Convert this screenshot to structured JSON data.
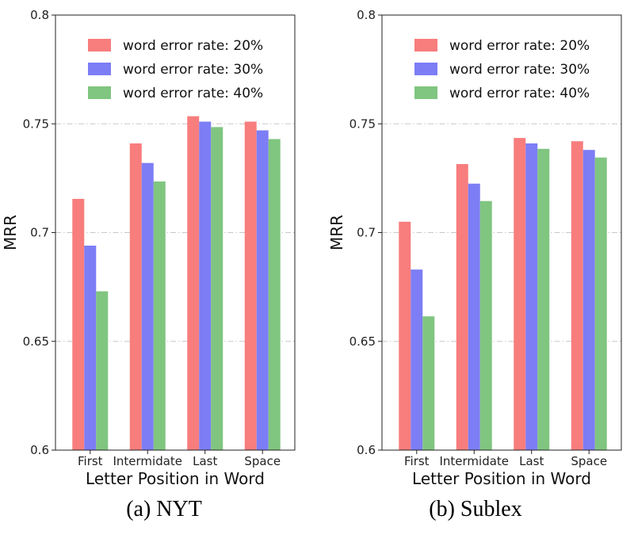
{
  "chart_data": [
    {
      "type": "bar",
      "caption": "(a) NYT",
      "categories": [
        "First",
        "Intermidate",
        "Last",
        "Space"
      ],
      "series": [
        {
          "name": "word error rate: 20%",
          "color": "#f87d7d",
          "values": [
            0.7155,
            0.741,
            0.7535,
            0.751
          ]
        },
        {
          "name": "word error rate: 30%",
          "color": "#7d7df5",
          "values": [
            0.694,
            0.732,
            0.751,
            0.747
          ]
        },
        {
          "name": "word error rate: 40%",
          "color": "#80c580",
          "values": [
            0.673,
            0.7235,
            0.7485,
            0.743
          ]
        }
      ],
      "xlabel": "Letter Position in Word",
      "ylabel": "MRR",
      "ylim": [
        0.6,
        0.8
      ],
      "yticks": [
        0.6,
        0.65,
        0.7,
        0.75,
        0.8
      ],
      "ytick_labels": [
        "0.6",
        "0.65",
        "0.7",
        "0.75",
        "0.8"
      ],
      "grid": "horizontal dash-dot",
      "legend": "top-right"
    },
    {
      "type": "bar",
      "caption": "(b) Sublex",
      "categories": [
        "First",
        "Intermidate",
        "Last",
        "Space"
      ],
      "series": [
        {
          "name": "word error rate: 20%",
          "color": "#f87d7d",
          "values": [
            0.705,
            0.7315,
            0.7435,
            0.742
          ]
        },
        {
          "name": "word error rate: 30%",
          "color": "#7d7df5",
          "values": [
            0.683,
            0.7225,
            0.741,
            0.738
          ]
        },
        {
          "name": "word error rate: 40%",
          "color": "#80c580",
          "values": [
            0.6615,
            0.7145,
            0.7385,
            0.7345
          ]
        }
      ],
      "xlabel": "Letter Position in Word",
      "ylabel": "MRR",
      "ylim": [
        0.6,
        0.8
      ],
      "yticks": [
        0.6,
        0.65,
        0.7,
        0.75,
        0.8
      ],
      "ytick_labels": [
        "0.6",
        "0.65",
        "0.7",
        "0.75",
        "0.8"
      ],
      "grid": "horizontal dash-dot",
      "legend": "top-right"
    }
  ]
}
